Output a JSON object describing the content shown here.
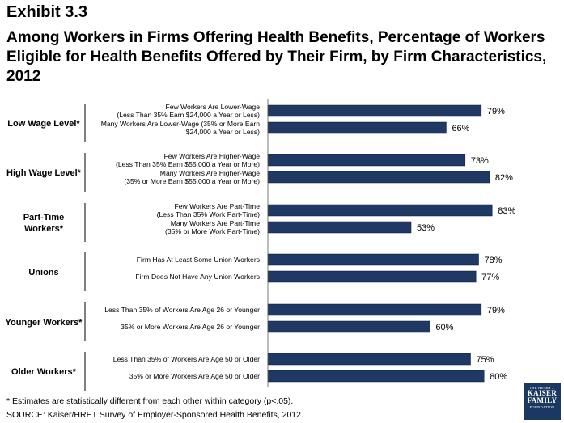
{
  "header": {
    "exhibit": "Exhibit 3.3",
    "title": "Among Workers in Firms Offering Health Benefits, Percentage of Workers Eligible for Health Benefits Offered by Their Firm, by Firm Characteristics, 2012"
  },
  "chart_data": {
    "type": "bar",
    "orientation": "horizontal",
    "xlim": [
      0,
      100
    ],
    "bar_color": "#1f3864",
    "value_suffix": "%",
    "groups": [
      {
        "label": "Low Wage Level*",
        "items": [
          {
            "label": [
              "Few Workers Are Lower-Wage",
              "(Less Than 35% Earn $24,000 a Year or Less)"
            ],
            "value": 79
          },
          {
            "label": [
              "Many Workers Are Lower-Wage (35% or More Earn",
              "$24,000 a Year or Less)"
            ],
            "value": 66
          }
        ]
      },
      {
        "label": "High Wage Level*",
        "items": [
          {
            "label": [
              "Few Workers Are Higher-Wage",
              "(Less Than 35% Earn $55,000 a Year or More)"
            ],
            "value": 73
          },
          {
            "label": [
              "Many Workers Are Higher-Wage",
              "(35% or More Earn $55,000 a Year or More)"
            ],
            "value": 82
          }
        ]
      },
      {
        "label": "Part-Time Workers*",
        "items": [
          {
            "label": [
              "Few Workers Are Part-Time",
              "(Less Than 35% Work Part-Time)"
            ],
            "value": 83
          },
          {
            "label": [
              "Many Workers Are Part-Time",
              "(35% or More Work Part-Time)"
            ],
            "value": 53
          }
        ]
      },
      {
        "label": "Unions",
        "items": [
          {
            "label": [
              "Firm Has At Least Some Union Workers"
            ],
            "value": 78
          },
          {
            "label": [
              "Firm Does Not Have Any Union Workers"
            ],
            "value": 77
          }
        ]
      },
      {
        "label": "Younger Workers*",
        "items": [
          {
            "label": [
              "Less Than 35% of Workers Are Age 26 or Younger"
            ],
            "value": 79
          },
          {
            "label": [
              "35% or More Workers Are Age 26 or Younger"
            ],
            "value": 60
          }
        ]
      },
      {
        "label": "Older Workers*",
        "items": [
          {
            "label": [
              "Less Than 35% of Workers Are Age 50 or Older"
            ],
            "value": 75
          },
          {
            "label": [
              "35% or More Workers Are Age 50 or Older"
            ],
            "value": 80
          }
        ]
      }
    ]
  },
  "footer": {
    "note": "* Estimates are statistically different from each other within category (p<.05).",
    "source": "SOURCE: Kaiser/HRET Survey of Employer-Sponsored Health Benefits, 2012."
  },
  "logo": {
    "top": "THE HENRY J.",
    "line1": "KAISER",
    "line2": "FAMILY",
    "bottom": "FOUNDATION"
  }
}
